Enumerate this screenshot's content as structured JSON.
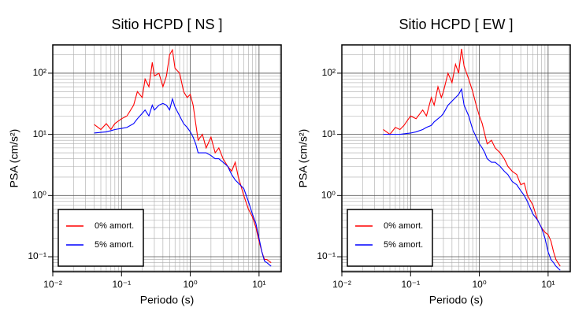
{
  "chart_data": [
    {
      "type": "line",
      "title": "Sitio HCPD [ NS ]",
      "xlabel": "Periodo (s)",
      "ylabel": "PSA (cm/s²)",
      "xscale": "log",
      "yscale": "log",
      "grid": true,
      "legend": "lower left",
      "xlim": [
        0.01,
        21
      ],
      "ylim": [
        0.057,
        290
      ],
      "xticks": [
        {
          "value": 0.01,
          "label": "10⁻²"
        },
        {
          "value": 0.1,
          "label": "10⁻¹"
        },
        {
          "value": 1,
          "label": "10⁰"
        },
        {
          "value": 10,
          "label": "10¹"
        }
      ],
      "yticks": [
        {
          "value": 0.1,
          "label": "10⁻¹"
        },
        {
          "value": 1,
          "label": "10⁰"
        },
        {
          "value": 10,
          "label": "10¹"
        },
        {
          "value": 100,
          "label": "10²"
        }
      ],
      "x": [
        0.04,
        0.05,
        0.06,
        0.07,
        0.08,
        0.1,
        0.12,
        0.15,
        0.17,
        0.2,
        0.22,
        0.25,
        0.28,
        0.3,
        0.35,
        0.4,
        0.45,
        0.5,
        0.55,
        0.6,
        0.7,
        0.8,
        0.9,
        1.0,
        1.1,
        1.2,
        1.3,
        1.5,
        1.7,
        2.0,
        2.3,
        2.6,
        3,
        3.5,
        4,
        4.5,
        5,
        6,
        7,
        8,
        9,
        10,
        11,
        12,
        13,
        15
      ],
      "series": [
        {
          "name": "0% amort.",
          "color": "#ff0000",
          "values": [
            14.5,
            12,
            15,
            12,
            15,
            18,
            20,
            30,
            50,
            40,
            80,
            60,
            150,
            90,
            100,
            60,
            90,
            200,
            240,
            120,
            100,
            50,
            40,
            45,
            30,
            15,
            8,
            10,
            6,
            9,
            5,
            6,
            4,
            3,
            2.5,
            3.5,
            2.0,
            1.0,
            0.6,
            0.45,
            0.3,
            0.18,
            0.12,
            0.09,
            0.09,
            0.08
          ]
        },
        {
          "name": "5% amort.",
          "color": "#0000ff",
          "values": [
            10.5,
            10.8,
            11,
            11.5,
            12,
            12.5,
            13,
            15,
            18,
            22,
            25,
            20,
            30,
            25,
            30,
            32,
            30,
            25,
            38,
            28,
            20,
            15,
            13,
            11,
            9,
            7,
            5,
            5,
            5,
            4.5,
            4,
            4,
            3.5,
            3,
            2.2,
            1.8,
            1.6,
            1.3,
            0.8,
            0.5,
            0.35,
            0.2,
            0.12,
            0.085,
            0.08,
            0.07
          ]
        }
      ]
    },
    {
      "type": "line",
      "title": "Sitio HCPD [ EW ]",
      "xlabel": "Periodo (s)",
      "ylabel": "PSA (cm/s²)",
      "xscale": "log",
      "yscale": "log",
      "grid": true,
      "legend": "lower left",
      "xlim": [
        0.01,
        21
      ],
      "ylim": [
        0.057,
        290
      ],
      "xticks": [
        {
          "value": 0.01,
          "label": "10⁻²"
        },
        {
          "value": 0.1,
          "label": "10⁻¹"
        },
        {
          "value": 1,
          "label": "10⁰"
        },
        {
          "value": 10,
          "label": "10¹"
        }
      ],
      "yticks": [
        {
          "value": 0.1,
          "label": "10⁻¹"
        },
        {
          "value": 1,
          "label": "10⁰"
        },
        {
          "value": 10,
          "label": "10¹"
        },
        {
          "value": 100,
          "label": "10²"
        }
      ],
      "x": [
        0.04,
        0.05,
        0.06,
        0.07,
        0.08,
        0.1,
        0.12,
        0.15,
        0.17,
        0.2,
        0.22,
        0.25,
        0.28,
        0.3,
        0.35,
        0.4,
        0.45,
        0.5,
        0.55,
        0.6,
        0.7,
        0.8,
        0.9,
        1.0,
        1.1,
        1.2,
        1.3,
        1.5,
        1.7,
        2.0,
        2.3,
        2.6,
        3,
        3.5,
        4,
        4.5,
        5,
        6,
        7,
        8,
        9,
        10,
        11,
        12,
        13,
        15
      ],
      "series": [
        {
          "name": "0% amort.",
          "color": "#ff0000",
          "values": [
            12,
            10,
            13,
            12,
            14,
            20,
            18,
            25,
            20,
            40,
            30,
            60,
            40,
            50,
            100,
            70,
            140,
            100,
            250,
            130,
            80,
            50,
            30,
            20,
            15,
            10,
            7,
            8,
            6,
            5,
            4,
            3,
            2.5,
            2.2,
            1.5,
            1.6,
            1.0,
            0.7,
            0.4,
            0.3,
            0.25,
            0.23,
            0.18,
            0.12,
            0.09,
            0.07
          ]
        },
        {
          "name": "5% amort.",
          "color": "#0000ff",
          "values": [
            10,
            10,
            10,
            10,
            10.2,
            10.5,
            11,
            12,
            13,
            14,
            16,
            18,
            20,
            22,
            30,
            35,
            40,
            45,
            55,
            30,
            20,
            12,
            9,
            7,
            6,
            5,
            4,
            3.5,
            3.5,
            3,
            2.5,
            2.2,
            1.7,
            1.5,
            1.2,
            1.0,
            0.8,
            0.5,
            0.4,
            0.3,
            0.2,
            0.12,
            0.09,
            0.08,
            0.07,
            0.06
          ]
        }
      ]
    }
  ]
}
